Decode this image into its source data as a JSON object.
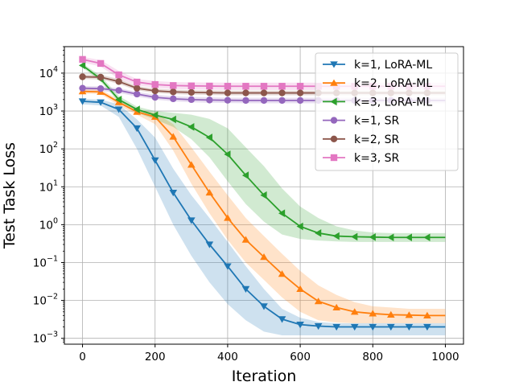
{
  "chart_data": {
    "type": "line",
    "title": "",
    "xlabel": "Iteration",
    "ylabel": "Test Task Loss",
    "xlim": [
      -50,
      1050
    ],
    "ylim": [
      0.0007,
      50000
    ],
    "yscale": "log",
    "grid": true,
    "legend_position": "top-right",
    "x_ticks": [
      0,
      200,
      400,
      600,
      800,
      1000
    ],
    "x_tick_labels": [
      "0",
      "200",
      "400",
      "600",
      "800",
      "1000"
    ],
    "y_ticks": [
      {
        "value": 0.001,
        "base": "10",
        "exp": "−3"
      },
      {
        "value": 0.01,
        "base": "10",
        "exp": "−2"
      },
      {
        "value": 0.1,
        "base": "10",
        "exp": "−1"
      },
      {
        "value": 1,
        "base": "10",
        "exp": "0"
      },
      {
        "value": 10,
        "base": "10",
        "exp": "1"
      },
      {
        "value": 100,
        "base": "10",
        "exp": "2"
      },
      {
        "value": 1000,
        "base": "10",
        "exp": "3"
      },
      {
        "value": 10000,
        "base": "10",
        "exp": "4"
      }
    ],
    "x": [
      0,
      50,
      100,
      150,
      200,
      250,
      300,
      350,
      400,
      450,
      500,
      550,
      600,
      650,
      700,
      750,
      800,
      850,
      900,
      950,
      1000
    ],
    "series": [
      {
        "name": "k=1, LoRA-ML",
        "color": "#1f77b4",
        "marker": "triangle-down",
        "marker_every": 1,
        "marker_last": false,
        "values": [
          1800,
          1700,
          1100,
          350,
          50,
          7,
          1.3,
          0.3,
          0.08,
          0.02,
          0.007,
          0.0032,
          0.0023,
          0.0021,
          0.002,
          0.002,
          0.002,
          0.002,
          0.002,
          0.002,
          0.002
        ],
        "band_low": [
          1500,
          1400,
          700,
          100,
          10,
          1,
          0.15,
          0.03,
          0.008,
          0.003,
          0.0015,
          0.0012,
          0.0012,
          0.0012,
          0.0012,
          0.0012,
          0.0012,
          0.0012,
          0.0012,
          0.0012,
          0.0012
        ],
        "band_high": [
          2100,
          2000,
          1500,
          600,
          200,
          30,
          6,
          1.5,
          0.35,
          0.08,
          0.02,
          0.006,
          0.0035,
          0.0027,
          0.0025,
          0.0025,
          0.0025,
          0.0025,
          0.0025,
          0.0025,
          0.0025
        ]
      },
      {
        "name": "k=2, LoRA-ML",
        "color": "#ff7f0e",
        "marker": "triangle-up",
        "marker_every": 1,
        "marker_last": false,
        "values": [
          3300,
          3200,
          1700,
          950,
          700,
          210,
          38,
          7,
          1.5,
          0.4,
          0.14,
          0.05,
          0.02,
          0.0095,
          0.0065,
          0.005,
          0.0045,
          0.0042,
          0.0041,
          0.004,
          0.004
        ],
        "band_low": [
          2900,
          2800,
          1400,
          800,
          450,
          90,
          12,
          2,
          0.4,
          0.1,
          0.035,
          0.012,
          0.005,
          0.003,
          0.0026,
          0.0025,
          0.0025,
          0.0025,
          0.0025,
          0.0025,
          0.0025
        ],
        "band_high": [
          3800,
          3700,
          2000,
          1100,
          900,
          450,
          110,
          25,
          6,
          1.5,
          0.5,
          0.17,
          0.06,
          0.025,
          0.014,
          0.009,
          0.007,
          0.0065,
          0.006,
          0.006,
          0.006
        ]
      },
      {
        "name": "k=3, LoRA-ML",
        "color": "#2ca02c",
        "marker": "triangle-left",
        "marker_every": 1,
        "marker_last": false,
        "values": [
          16000,
          7000,
          2000,
          1100,
          780,
          600,
          380,
          200,
          72,
          20,
          6,
          2,
          0.9,
          0.6,
          0.5,
          0.48,
          0.47,
          0.46,
          0.46,
          0.46,
          0.46
        ],
        "band_low": [
          14000,
          6000,
          1700,
          900,
          600,
          380,
          180,
          60,
          14,
          3.5,
          1.2,
          0.55,
          0.42,
          0.38,
          0.36,
          0.35,
          0.35,
          0.35,
          0.35,
          0.35,
          0.35
        ],
        "band_high": [
          18000,
          8500,
          2500,
          1300,
          1000,
          900,
          800,
          620,
          350,
          110,
          35,
          9,
          3,
          1.5,
          0.9,
          0.7,
          0.62,
          0.6,
          0.6,
          0.6,
          0.6
        ]
      },
      {
        "name": "k=1, SR",
        "color": "#9467bd",
        "marker": "circle",
        "marker_every": 1,
        "marker_last": false,
        "values": [
          4000,
          3900,
          3500,
          2800,
          2300,
          2100,
          2000,
          1950,
          1920,
          1900,
          1900,
          1900,
          1900,
          1900,
          1900,
          1900,
          1900,
          1900,
          1900,
          1900,
          1900
        ],
        "band_low": [
          3500,
          3400,
          3000,
          2400,
          2000,
          1800,
          1700,
          1650,
          1620,
          1600,
          1600,
          1600,
          1600,
          1600,
          1600,
          1600,
          1600,
          1600,
          1600,
          1600,
          1600
        ],
        "band_high": [
          4600,
          4500,
          4000,
          3200,
          2700,
          2450,
          2350,
          2300,
          2250,
          2230,
          2230,
          2230,
          2230,
          2230,
          2230,
          2230,
          2230,
          2230,
          2230,
          2230,
          2230
        ]
      },
      {
        "name": "k=2, SR",
        "color": "#8c564b",
        "marker": "circle",
        "marker_every": 1,
        "marker_last": false,
        "values": [
          8000,
          7800,
          6000,
          4000,
          3400,
          3200,
          3100,
          3050,
          3000,
          3000,
          3000,
          3000,
          3000,
          3000,
          3000,
          3000,
          3000,
          3000,
          3000,
          3000,
          3000
        ],
        "band_low": [
          7000,
          6800,
          5200,
          3500,
          3000,
          2800,
          2700,
          2650,
          2600,
          2600,
          2600,
          2600,
          2600,
          2600,
          2600,
          2600,
          2600,
          2600,
          2600,
          2600,
          2600
        ],
        "band_high": [
          9200,
          9000,
          7000,
          4600,
          3900,
          3650,
          3550,
          3500,
          3450,
          3450,
          3450,
          3450,
          3450,
          3450,
          3450,
          3450,
          3450,
          3450,
          3450,
          3450,
          3450
        ]
      },
      {
        "name": "k=3, SR",
        "color": "#e377c2",
        "marker": "square",
        "marker_every": 1,
        "marker_last": false,
        "values": [
          23000,
          18000,
          9000,
          5800,
          5000,
          4700,
          4600,
          4550,
          4500,
          4500,
          4500,
          4500,
          4500,
          4500,
          4500,
          4500,
          4500,
          4500,
          4500,
          4500,
          4500
        ],
        "band_low": [
          19000,
          15000,
          7000,
          4800,
          4100,
          3800,
          3700,
          3650,
          3600,
          3600,
          3600,
          3600,
          3600,
          3600,
          3600,
          3600,
          3600,
          3600,
          3600,
          3600,
          3600
        ],
        "band_high": [
          27000,
          22000,
          11500,
          7000,
          6200,
          5800,
          5700,
          5650,
          5600,
          5600,
          5600,
          5600,
          5600,
          5600,
          5600,
          5600,
          5600,
          5600,
          5600,
          5600,
          5600
        ]
      }
    ]
  }
}
